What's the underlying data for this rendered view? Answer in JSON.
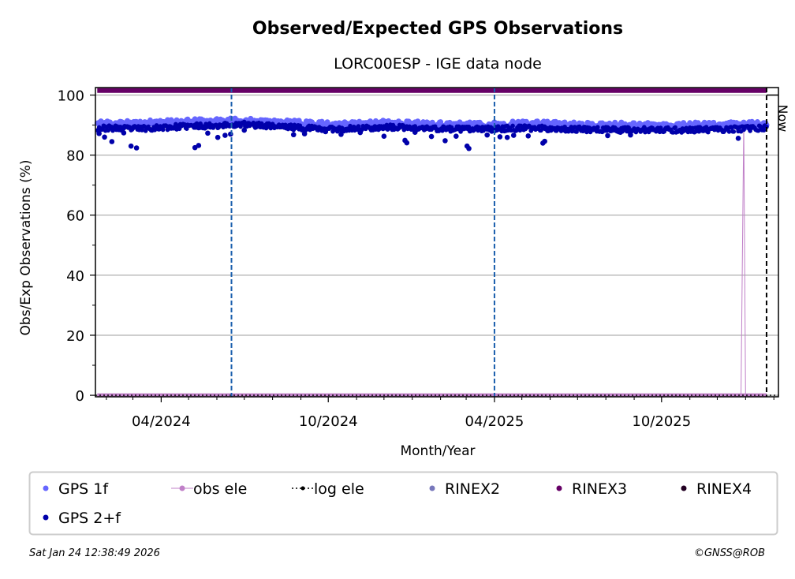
{
  "chart_data": {
    "type": "scatter",
    "title": "Observed/Expected GPS Observations",
    "subtitle": "LORC00ESP - IGE data node",
    "xlabel": "Month/Year",
    "ylabel": "Obs/Exp Observations (%)",
    "ylim": [
      -0.5,
      102.5
    ],
    "xlim": [
      "2024-01-20",
      "2026-02-06"
    ],
    "x_ticks": [
      {
        "date": "2024-04-01",
        "label": "04/2024"
      },
      {
        "date": "2024-10-01",
        "label": "10/2024"
      },
      {
        "date": "2025-04-01",
        "label": "04/2025"
      },
      {
        "date": "2025-10-01",
        "label": "10/2025"
      }
    ],
    "y_ticks": [
      0,
      20,
      40,
      60,
      80,
      100
    ],
    "grid": "horizontal",
    "now_label": "Now",
    "now_date": "2026-01-24",
    "event_lines": [
      "2024-06-17",
      "2025-04-01"
    ],
    "series": [
      {
        "name": "GPS 1f",
        "color": "#6666ff",
        "x_range": [
          "2024-01-22",
          "2026-01-24"
        ],
        "values": [
          {
            "x": "2024-02-01",
            "y": 90.6
          },
          {
            "x": "2024-03-01",
            "y": 90.4
          },
          {
            "x": "2024-04-01",
            "y": 90.8
          },
          {
            "x": "2024-05-01",
            "y": 91.0
          },
          {
            "x": "2024-06-01",
            "y": 91.2
          },
          {
            "x": "2024-07-01",
            "y": 91.3
          },
          {
            "x": "2024-08-01",
            "y": 90.9
          },
          {
            "x": "2024-09-01",
            "y": 90.5
          },
          {
            "x": "2024-10-01",
            "y": 90.1
          },
          {
            "x": "2024-11-01",
            "y": 90.2
          },
          {
            "x": "2024-12-01",
            "y": 90.6
          },
          {
            "x": "2025-01-01",
            "y": 90.4
          },
          {
            "x": "2025-02-01",
            "y": 90.2
          },
          {
            "x": "2025-03-01",
            "y": 90.0
          },
          {
            "x": "2025-04-01",
            "y": 90.1
          },
          {
            "x": "2025-05-01",
            "y": 90.4
          },
          {
            "x": "2025-06-01",
            "y": 90.3
          },
          {
            "x": "2025-07-01",
            "y": 90.0
          },
          {
            "x": "2025-08-01",
            "y": 89.9
          },
          {
            "x": "2025-09-01",
            "y": 90.0
          },
          {
            "x": "2025-10-01",
            "y": 89.8
          },
          {
            "x": "2025-11-01",
            "y": 89.9
          },
          {
            "x": "2025-12-01",
            "y": 89.9
          },
          {
            "x": "2026-01-01",
            "y": 90.1
          },
          {
            "x": "2026-01-24",
            "y": 90.2
          }
        ]
      },
      {
        "name": "GPS 2+f",
        "color": "#0000aa",
        "x_range": [
          "2024-01-22",
          "2026-01-24"
        ],
        "values": [
          {
            "x": "2024-02-01",
            "y": 89.0
          },
          {
            "x": "2024-03-01",
            "y": 88.8
          },
          {
            "x": "2024-04-01",
            "y": 89.2
          },
          {
            "x": "2024-05-01",
            "y": 89.6
          },
          {
            "x": "2024-06-01",
            "y": 89.9
          },
          {
            "x": "2024-07-01",
            "y": 90.2
          },
          {
            "x": "2024-08-01",
            "y": 89.7
          },
          {
            "x": "2024-09-01",
            "y": 89.1
          },
          {
            "x": "2024-10-01",
            "y": 88.7
          },
          {
            "x": "2024-11-01",
            "y": 88.9
          },
          {
            "x": "2024-12-01",
            "y": 89.3
          },
          {
            "x": "2025-01-01",
            "y": 89.0
          },
          {
            "x": "2025-02-01",
            "y": 88.8
          },
          {
            "x": "2025-03-01",
            "y": 88.6
          },
          {
            "x": "2025-04-01",
            "y": 88.7
          },
          {
            "x": "2025-05-01",
            "y": 89.0
          },
          {
            "x": "2025-06-01",
            "y": 88.9
          },
          {
            "x": "2025-07-01",
            "y": 88.6
          },
          {
            "x": "2025-08-01",
            "y": 88.5
          },
          {
            "x": "2025-09-01",
            "y": 88.5
          },
          {
            "x": "2025-10-01",
            "y": 88.3
          },
          {
            "x": "2025-11-01",
            "y": 88.4
          },
          {
            "x": "2025-12-01",
            "y": 88.5
          },
          {
            "x": "2026-01-01",
            "y": 88.8
          },
          {
            "x": "2026-01-24",
            "y": 89.0
          }
        ],
        "outliers": [
          {
            "x": "2024-01-24",
            "y": 87.2
          },
          {
            "x": "2024-01-30",
            "y": 86.0
          },
          {
            "x": "2024-02-07",
            "y": 84.5
          },
          {
            "x": "2024-02-20",
            "y": 87.4
          },
          {
            "x": "2024-02-28",
            "y": 83.0
          },
          {
            "x": "2024-03-05",
            "y": 82.4
          },
          {
            "x": "2024-05-08",
            "y": 82.5
          },
          {
            "x": "2024-05-12",
            "y": 83.2
          },
          {
            "x": "2024-05-22",
            "y": 87.3
          },
          {
            "x": "2024-06-02",
            "y": 85.9
          },
          {
            "x": "2024-06-10",
            "y": 86.6
          },
          {
            "x": "2024-06-16",
            "y": 87.0
          },
          {
            "x": "2024-07-01",
            "y": 88.3
          },
          {
            "x": "2024-08-24",
            "y": 86.8
          },
          {
            "x": "2024-09-05",
            "y": 87.1
          },
          {
            "x": "2024-09-28",
            "y": 87.8
          },
          {
            "x": "2024-10-15",
            "y": 86.9
          },
          {
            "x": "2024-11-05",
            "y": 87.5
          },
          {
            "x": "2024-12-01",
            "y": 86.3
          },
          {
            "x": "2024-12-24",
            "y": 84.9
          },
          {
            "x": "2024-12-26",
            "y": 84.1
          },
          {
            "x": "2025-01-04",
            "y": 87.6
          },
          {
            "x": "2025-01-22",
            "y": 86.2
          },
          {
            "x": "2025-02-06",
            "y": 84.8
          },
          {
            "x": "2025-02-18",
            "y": 86.3
          },
          {
            "x": "2025-03-02",
            "y": 83.0
          },
          {
            "x": "2025-03-04",
            "y": 82.2
          },
          {
            "x": "2025-03-24",
            "y": 86.7
          },
          {
            "x": "2025-04-07",
            "y": 86.1
          },
          {
            "x": "2025-04-15",
            "y": 85.9
          },
          {
            "x": "2025-04-22",
            "y": 86.6
          },
          {
            "x": "2025-05-08",
            "y": 86.4
          },
          {
            "x": "2025-05-24",
            "y": 84.0
          },
          {
            "x": "2025-05-26",
            "y": 84.6
          },
          {
            "x": "2025-08-03",
            "y": 86.5
          },
          {
            "x": "2025-08-17",
            "y": 87.6
          },
          {
            "x": "2025-08-28",
            "y": 86.7
          },
          {
            "x": "2025-12-24",
            "y": 85.6
          }
        ]
      },
      {
        "name": "obs ele",
        "color": "#c080c8",
        "values": [
          {
            "x": "2024-01-22",
            "y": 0
          },
          {
            "x": "2025-12-27",
            "y": 0
          },
          {
            "x": "2025-12-30",
            "y": 90.0
          },
          {
            "x": "2026-01-01",
            "y": 0
          },
          {
            "x": "2026-01-24",
            "y": 0
          }
        ]
      },
      {
        "name": "log ele",
        "color": "#000000",
        "values": [
          {
            "x": "2024-01-20",
            "y": 0
          },
          {
            "x": "2026-02-06",
            "y": 0
          }
        ]
      },
      {
        "name": "RINEX2",
        "color": "#7777bb",
        "values": []
      },
      {
        "name": "RINEX3",
        "color": "#660066",
        "x_range": [
          "2024-01-22",
          "2026-01-24"
        ],
        "values": [
          {
            "x": "2024-01-22",
            "y": 101.5
          },
          {
            "x": "2026-01-24",
            "y": 101.5
          }
        ]
      },
      {
        "name": "RINEX4",
        "color": "#220022",
        "values": []
      }
    ],
    "legend": {
      "placement": "bottom",
      "entries": [
        {
          "label": "GPS 1f",
          "marker": "dot",
          "color": "#6666ff"
        },
        {
          "label": "obs ele",
          "marker": "line-dot",
          "color": "#c080c8"
        },
        {
          "label": "log ele",
          "marker": "dotted-line-dot",
          "color": "#000000"
        },
        {
          "label": "RINEX2",
          "marker": "dot",
          "color": "#7777bb"
        },
        {
          "label": "RINEX3",
          "marker": "dot",
          "color": "#660066"
        },
        {
          "label": "RINEX4",
          "marker": "dot",
          "color": "#220022"
        },
        {
          "label": "GPS 2+f",
          "marker": "dot",
          "color": "#0000aa"
        }
      ]
    },
    "colors": {
      "event_line": "#1a5fad",
      "grid": "#b0b0b0",
      "frame": "#000000",
      "legend_border": "#cccccc"
    }
  },
  "footer": {
    "timestamp": "Sat Jan 24 12:38:49 2026",
    "credit": "©GNSS@ROB"
  }
}
